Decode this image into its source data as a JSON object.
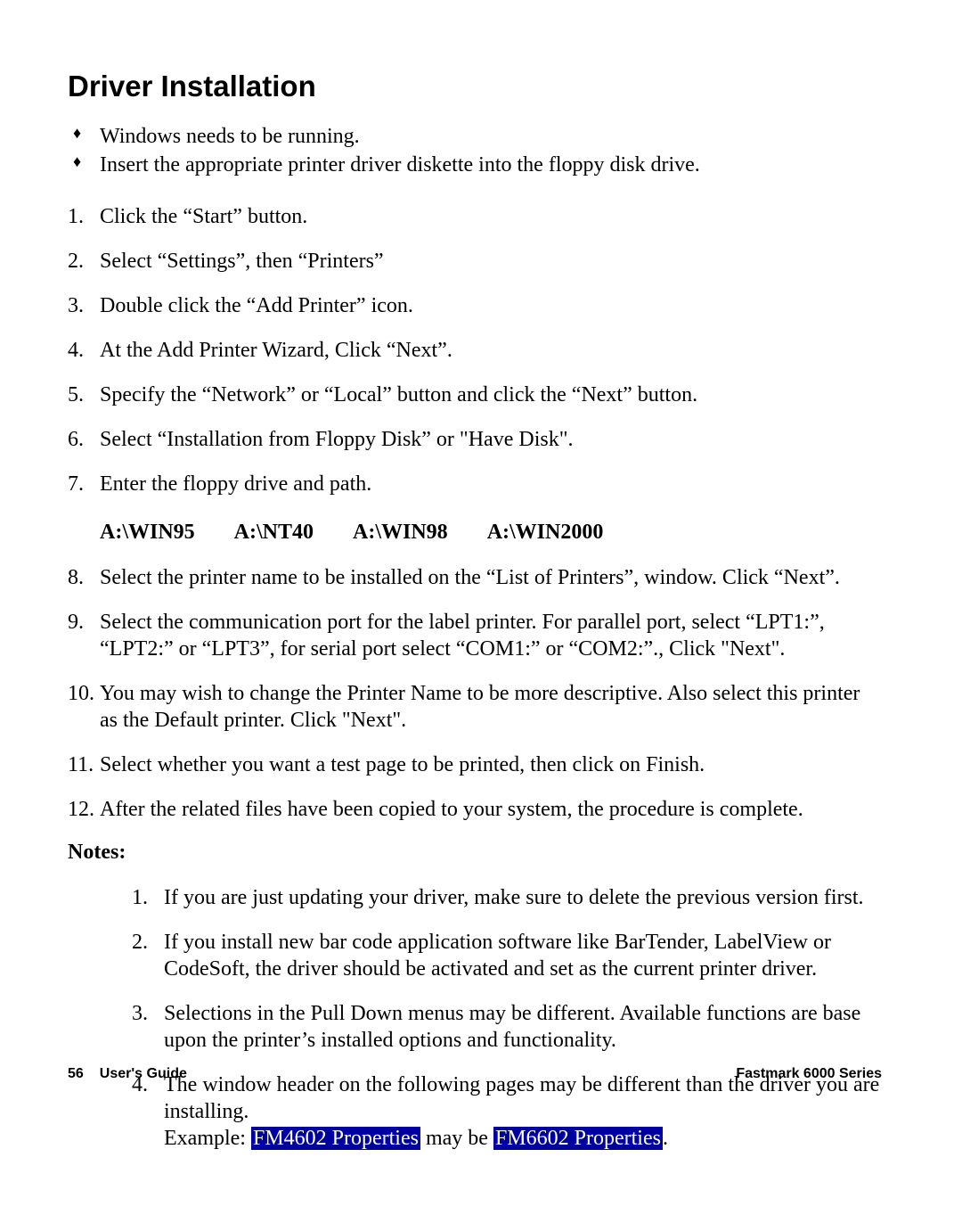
{
  "title": "Driver Installation",
  "bullets": [
    "Windows needs to be running.",
    "Insert the appropriate printer driver diskette into the floppy disk drive."
  ],
  "steps": [
    "Click the “Start” button.",
    "Select “Settings”, then “Printers”",
    "Double click the “Add Printer” icon.",
    "At the Add Printer Wizard, Click “Next”.",
    "Specify the “Network” or “Local” button and click the “Next” button.",
    "Select “Installation from Floppy Disk” or \"Have Disk\".",
    "Enter the floppy drive and path."
  ],
  "paths": [
    "A:\\WIN95",
    "A:\\NT40",
    "A:\\WIN98",
    "A:\\WIN2000"
  ],
  "steps2": [
    "Select the printer name to be installed on the  “List of Printers”, window.  Click “Next”.",
    "Select the communication port for the label printer.  For parallel port, select “LPT1:”, “LPT2:” or “LPT3”, for serial port select “COM1:” or “COM2:”., Click \"Next\".",
    "You may wish to change the Printer Name to be more descriptive.  Also select this printer as the Default printer.  Click \"Next\".",
    "Select whether you want a test page to be printed, then click on Finish.",
    "After the related files have been copied to your system, the procedure is complete."
  ],
  "notes_heading": "Notes:",
  "notes": [
    "If you are just updating your driver, make sure to delete the previous version first.",
    "If you install new bar code application software like BarTender, LabelView or CodeSoft, the driver should be activated and set as the current printer driver.",
    "Selections in the Pull Down menus may be different.  Available functions are base upon the printer’s installed options and functionality."
  ],
  "note4": {
    "line1": "The window header on the following pages may be different than the driver you are installing.",
    "example_prefix": "Example: ",
    "hl1": "FM4602 Properties",
    "mid": " may be ",
    "hl2": "FM6602 Properties",
    "suffix": "."
  },
  "footer": {
    "page_number": "56",
    "left_label": "User's Guide",
    "right_label": "Fastmark 6000 Series"
  },
  "colors": {
    "highlight_bg": "#0000a0",
    "highlight_fg": "#ffffff",
    "page_bg": "#ffffff",
    "text": "#000000"
  }
}
